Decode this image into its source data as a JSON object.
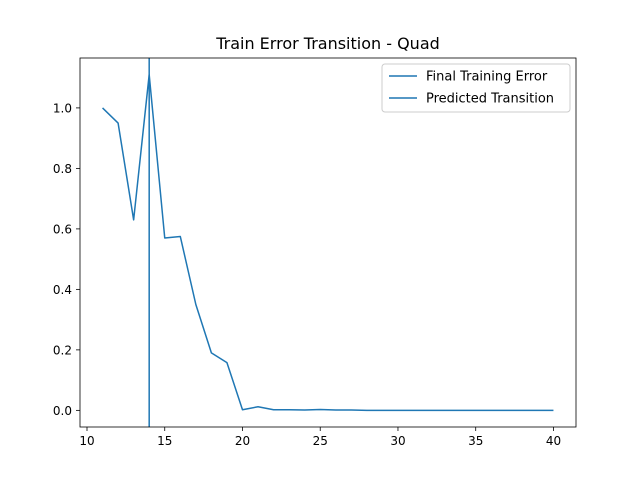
{
  "chart_data": {
    "type": "line",
    "title": "Train Error Transition - Quad",
    "xlabel": "",
    "ylabel": "",
    "xlim": [
      9.55,
      41.45
    ],
    "ylim": [
      -0.055,
      1.165
    ],
    "xticks": [
      10,
      15,
      20,
      25,
      30,
      35,
      40
    ],
    "yticks": [
      0.0,
      0.2,
      0.4,
      0.6,
      0.8,
      1.0
    ],
    "ytick_labels": [
      "0.0",
      "0.2",
      "0.4",
      "0.6",
      "0.8",
      "1.0"
    ],
    "grid": false,
    "legend_position": "top-right",
    "line_color": "#1f77b4",
    "series": [
      {
        "name": "Final Training Error",
        "x": [
          11,
          12,
          13,
          14,
          15,
          16,
          17,
          18,
          19,
          20,
          21,
          22,
          23,
          24,
          25,
          26,
          27,
          28,
          29,
          30,
          31,
          32,
          33,
          34,
          35,
          36,
          37,
          38,
          39,
          40
        ],
        "values": [
          1.0,
          0.95,
          0.63,
          1.11,
          0.57,
          0.575,
          0.35,
          0.19,
          0.158,
          0.002,
          0.012,
          0.002,
          0.002,
          0.001,
          0.003,
          0.001,
          0.001,
          0.0,
          0.0,
          0.0,
          0.0,
          0.0,
          0.0,
          0.0,
          0.0,
          0.0,
          0.0,
          0.0,
          0.0,
          0.0
        ]
      }
    ],
    "vlines": [
      {
        "name": "Predicted Transition",
        "x": 14
      }
    ]
  }
}
